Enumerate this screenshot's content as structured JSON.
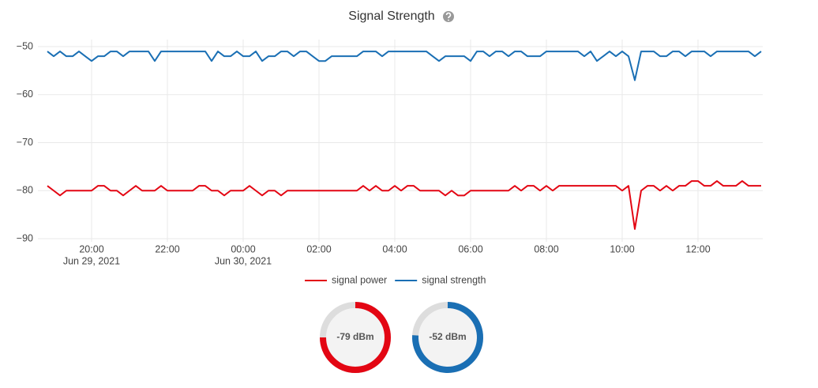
{
  "chart_data": {
    "type": "line",
    "title": "Signal Strength",
    "x": [
      "2021-06-29 18:50",
      "2021-06-29 19:00",
      "2021-06-29 19:10",
      "2021-06-29 19:20",
      "2021-06-29 19:30",
      "2021-06-29 19:40",
      "2021-06-29 19:50",
      "2021-06-29 20:00",
      "2021-06-29 20:10",
      "2021-06-29 20:20",
      "2021-06-29 20:30",
      "2021-06-29 20:40",
      "2021-06-29 20:50",
      "2021-06-29 21:00",
      "2021-06-29 21:10",
      "2021-06-29 21:20",
      "2021-06-29 21:30",
      "2021-06-29 21:40",
      "2021-06-29 21:50",
      "2021-06-29 22:00",
      "2021-06-29 22:10",
      "2021-06-29 22:20",
      "2021-06-29 22:30",
      "2021-06-29 22:40",
      "2021-06-29 22:50",
      "2021-06-29 23:00",
      "2021-06-29 23:10",
      "2021-06-29 23:20",
      "2021-06-29 23:30",
      "2021-06-29 23:40",
      "2021-06-29 23:50",
      "2021-06-30 00:00",
      "2021-06-30 00:10",
      "2021-06-30 00:20",
      "2021-06-30 00:30",
      "2021-06-30 00:40",
      "2021-06-30 00:50",
      "2021-06-30 01:00",
      "2021-06-30 01:10",
      "2021-06-30 01:20",
      "2021-06-30 01:30",
      "2021-06-30 01:40",
      "2021-06-30 01:50",
      "2021-06-30 02:00",
      "2021-06-30 02:10",
      "2021-06-30 02:20",
      "2021-06-30 02:30",
      "2021-06-30 02:40",
      "2021-06-30 02:50",
      "2021-06-30 03:00",
      "2021-06-30 03:10",
      "2021-06-30 03:20",
      "2021-06-30 03:30",
      "2021-06-30 03:40",
      "2021-06-30 03:50",
      "2021-06-30 04:00",
      "2021-06-30 04:10",
      "2021-06-30 04:20",
      "2021-06-30 04:30",
      "2021-06-30 04:40",
      "2021-06-30 04:50",
      "2021-06-30 05:00",
      "2021-06-30 05:10",
      "2021-06-30 05:20",
      "2021-06-30 05:30",
      "2021-06-30 05:40",
      "2021-06-30 05:50",
      "2021-06-30 06:00",
      "2021-06-30 06:10",
      "2021-06-30 06:20",
      "2021-06-30 06:30",
      "2021-06-30 06:40",
      "2021-06-30 06:50",
      "2021-06-30 07:00",
      "2021-06-30 07:10",
      "2021-06-30 07:20",
      "2021-06-30 07:30",
      "2021-06-30 07:40",
      "2021-06-30 07:50",
      "2021-06-30 08:00",
      "2021-06-30 08:10",
      "2021-06-30 08:20",
      "2021-06-30 08:30",
      "2021-06-30 08:40",
      "2021-06-30 08:50",
      "2021-06-30 09:00",
      "2021-06-30 09:10",
      "2021-06-30 09:20",
      "2021-06-30 09:30",
      "2021-06-30 09:40",
      "2021-06-30 09:50",
      "2021-06-30 10:00",
      "2021-06-30 10:10",
      "2021-06-30 10:20",
      "2021-06-30 10:30",
      "2021-06-30 10:40",
      "2021-06-30 10:50",
      "2021-06-30 11:00",
      "2021-06-30 11:10",
      "2021-06-30 11:20",
      "2021-06-30 11:30",
      "2021-06-30 11:40",
      "2021-06-30 11:50",
      "2021-06-30 12:00",
      "2021-06-30 12:10",
      "2021-06-30 12:20",
      "2021-06-30 12:30",
      "2021-06-30 12:40",
      "2021-06-30 12:50",
      "2021-06-30 13:00",
      "2021-06-30 13:10",
      "2021-06-30 13:20",
      "2021-06-30 13:30",
      "2021-06-30 13:40"
    ],
    "series": [
      {
        "name": "signal power",
        "color": "#e30613",
        "values": [
          -79,
          -80,
          -81,
          -80,
          -80,
          -80,
          -80,
          -80,
          -79,
          -79,
          -80,
          -80,
          -81,
          -80,
          -79,
          -80,
          -80,
          -80,
          -79,
          -80,
          -80,
          -80,
          -80,
          -80,
          -79,
          -79,
          -80,
          -80,
          -81,
          -80,
          -80,
          -80,
          -79,
          -80,
          -81,
          -80,
          -80,
          -81,
          -80,
          -80,
          -80,
          -80,
          -80,
          -80,
          -80,
          -80,
          -80,
          -80,
          -80,
          -80,
          -79,
          -80,
          -79,
          -80,
          -80,
          -79,
          -80,
          -79,
          -79,
          -80,
          -80,
          -80,
          -80,
          -81,
          -80,
          -81,
          -81,
          -80,
          -80,
          -80,
          -80,
          -80,
          -80,
          -80,
          -79,
          -80,
          -79,
          -79,
          -80,
          -79,
          -80,
          -79,
          -79,
          -79,
          -79,
          -79,
          -79,
          -79,
          -79,
          -79,
          -79,
          -80,
          -79,
          -88,
          -80,
          -79,
          -79,
          -80,
          -79,
          -80,
          -79,
          -79,
          -78,
          -78,
          -79,
          -79,
          -78,
          -79,
          -79,
          -79,
          -78,
          -79,
          -79,
          -79
        ]
      },
      {
        "name": "signal strength",
        "color": "#1a6fb4",
        "values": [
          -51,
          -52,
          -51,
          -52,
          -52,
          -51,
          -52,
          -53,
          -52,
          -52,
          -51,
          -51,
          -52,
          -51,
          -51,
          -51,
          -51,
          -53,
          -51,
          -51,
          -51,
          -51,
          -51,
          -51,
          -51,
          -51,
          -53,
          -51,
          -52,
          -52,
          -51,
          -52,
          -52,
          -51,
          -53,
          -52,
          -52,
          -51,
          -51,
          -52,
          -51,
          -51,
          -52,
          -53,
          -53,
          -52,
          -52,
          -52,
          -52,
          -52,
          -51,
          -51,
          -51,
          -52,
          -51,
          -51,
          -51,
          -51,
          -51,
          -51,
          -51,
          -52,
          -53,
          -52,
          -52,
          -52,
          -52,
          -53,
          -51,
          -51,
          -52,
          -51,
          -51,
          -52,
          -51,
          -51,
          -52,
          -52,
          -52,
          -51,
          -51,
          -51,
          -51,
          -51,
          -51,
          -52,
          -51,
          -53,
          -52,
          -51,
          -52,
          -51,
          -52,
          -57,
          -51,
          -51,
          -51,
          -52,
          -52,
          -51,
          -51,
          -52,
          -51,
          -51,
          -51,
          -52,
          -51,
          -51,
          -51,
          -51,
          -51,
          -51,
          -52,
          -51
        ]
      }
    ],
    "xlim": [
      "2021-06-29 18:50",
      "2021-06-30 13:40"
    ],
    "xticks": [
      {
        "value": "2021-06-29 20:00",
        "label": "20:00",
        "date_label": "Jun 29, 2021"
      },
      {
        "value": "2021-06-29 22:00",
        "label": "22:00"
      },
      {
        "value": "2021-06-30 00:00",
        "label": "00:00",
        "date_label": "Jun 30, 2021"
      },
      {
        "value": "2021-06-30 02:00",
        "label": "02:00"
      },
      {
        "value": "2021-06-30 04:00",
        "label": "04:00"
      },
      {
        "value": "2021-06-30 06:00",
        "label": "06:00"
      },
      {
        "value": "2021-06-30 08:00",
        "label": "08:00"
      },
      {
        "value": "2021-06-30 10:00",
        "label": "10:00"
      },
      {
        "value": "2021-06-30 12:00",
        "label": "12:00"
      }
    ],
    "ylim": [
      -90,
      -50
    ],
    "yticks": [
      {
        "value": -90,
        "label": "−90"
      },
      {
        "value": -80,
        "label": "−80"
      },
      {
        "value": -70,
        "label": "−70"
      },
      {
        "value": -60,
        "label": "−60"
      },
      {
        "value": -50,
        "label": "−50"
      }
    ],
    "grid": true,
    "legend": "bottom",
    "gauges": [
      {
        "value": -79,
        "value_label": "-79 dBm",
        "color": "#e30613",
        "arc_percent": 75
      },
      {
        "value": -52,
        "value_label": "-52 dBm",
        "color": "#1a6fb4",
        "arc_percent": 76
      }
    ]
  }
}
